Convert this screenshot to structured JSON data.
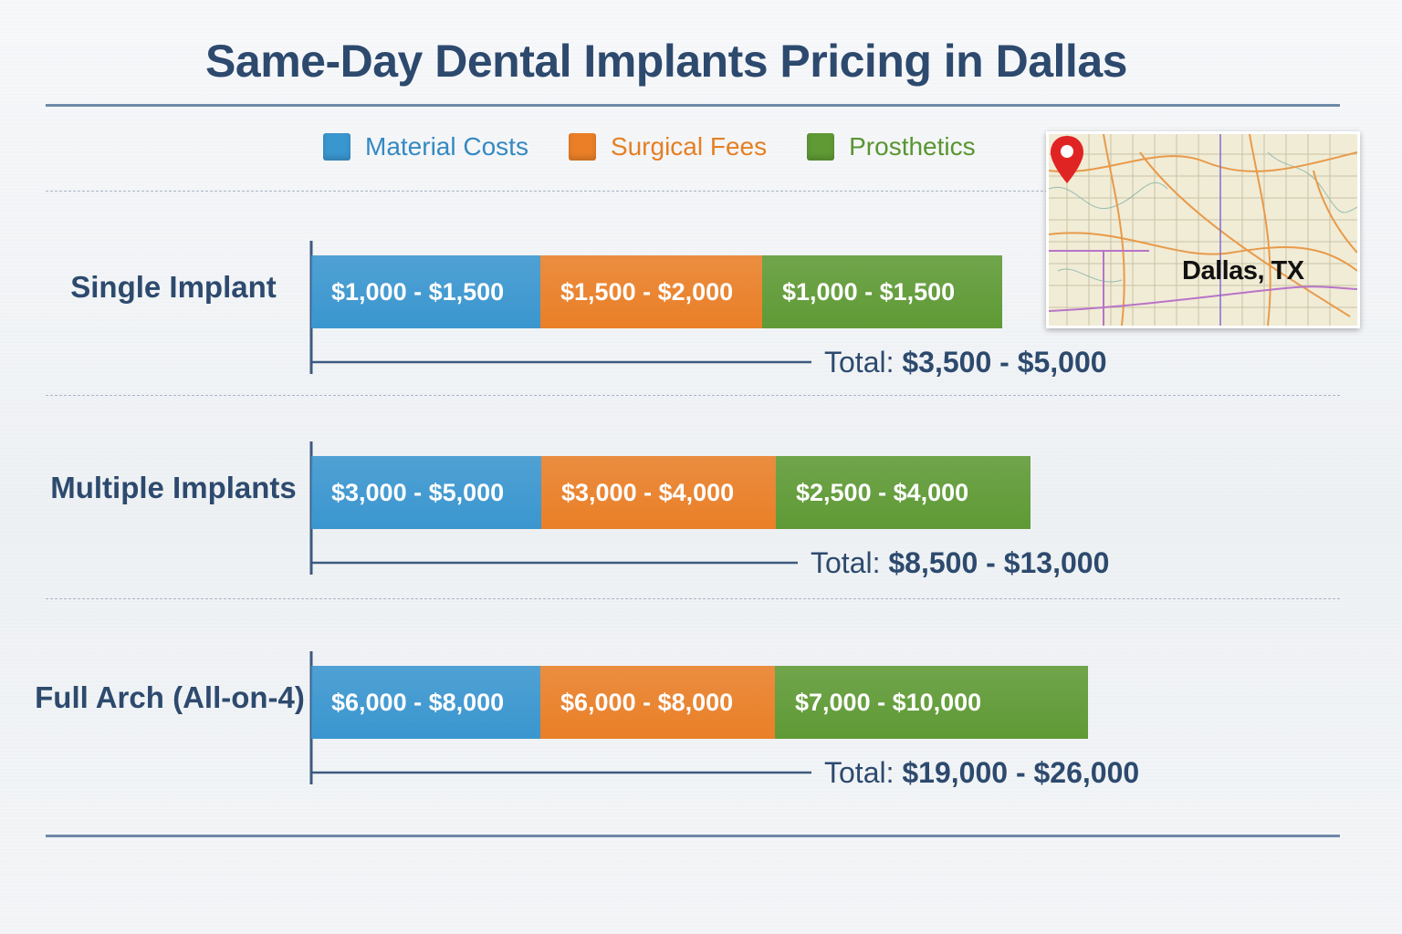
{
  "chart_data": {
    "type": "bar",
    "title": "Same-Day Dental Implants Pricing in Dallas",
    "stacked": true,
    "orientation": "horizontal",
    "legend_position": "top",
    "legend": [
      {
        "name": "Material Costs",
        "color": "#3a96cf",
        "text_color": "#3589c2"
      },
      {
        "name": "Surgical Fees",
        "color": "#ea7f27",
        "text_color": "#e57f23"
      },
      {
        "name": "Prosthetics",
        "color": "#5f9a35",
        "text_color": "#5a9530"
      }
    ],
    "categories": [
      "Single Implant",
      "Multiple Implants",
      "Full Arch (All-on-4)"
    ],
    "series": [
      {
        "name": "Material Costs",
        "ranges": [
          [
            1000,
            1500
          ],
          [
            3000,
            5000
          ],
          [
            6000,
            8000
          ]
        ],
        "labels": [
          "$1,000 - $1,500",
          "$3,000 - $5,000",
          "$6,000 - $8,000"
        ]
      },
      {
        "name": "Surgical Fees",
        "ranges": [
          [
            1500,
            2000
          ],
          [
            3000,
            4000
          ],
          [
            6000,
            8000
          ]
        ],
        "labels": [
          "$1,500 - $2,000",
          "$3,000 - $4,000",
          "$6,000 - $8,000"
        ]
      },
      {
        "name": "Prosthetics",
        "ranges": [
          [
            1000,
            1500
          ],
          [
            2500,
            4000
          ],
          [
            7000,
            10000
          ]
        ],
        "labels": [
          "$1,000 - $1,500",
          "$2,500 - $4,000",
          "$7,000 - $10,000"
        ]
      }
    ],
    "totals": [
      {
        "prefix": "Total:",
        "value": "$3,500 - $5,000"
      },
      {
        "prefix": "Total:",
        "value": "$8,500 - $13,000"
      },
      {
        "prefix": "Total:",
        "value": "$19,000 - $26,000"
      }
    ]
  },
  "map": {
    "label": "Dallas, TX",
    "pin_icon": "map-pin-icon",
    "pin_color": "#e02424"
  },
  "colors": {
    "title": "#2d4a6e",
    "category_label": "#2d4a6e",
    "axis": "#3d5a80",
    "total_text": "#2d4a6e"
  }
}
